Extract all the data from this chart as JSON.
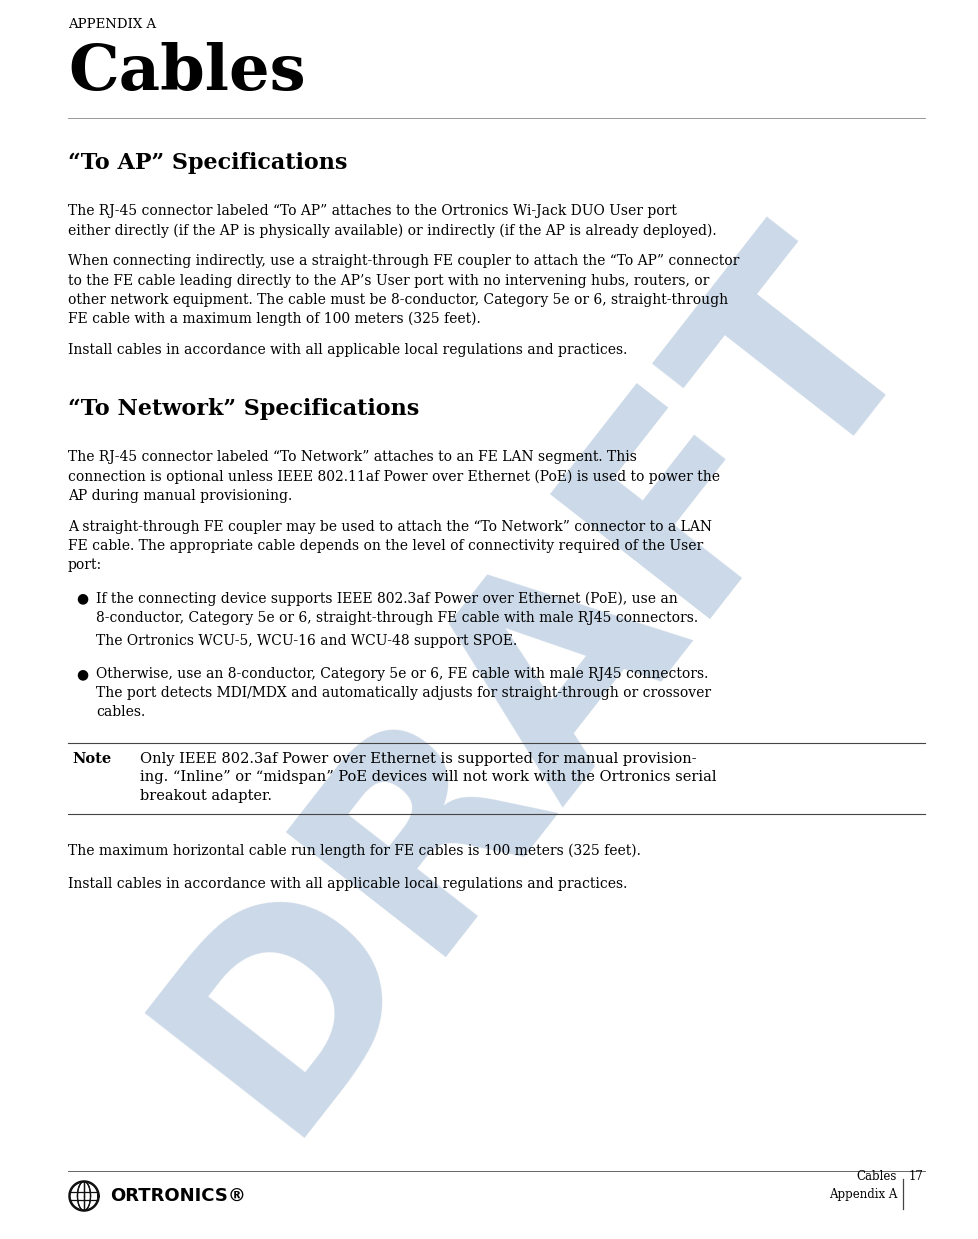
{
  "page_width": 9.79,
  "page_height": 12.39,
  "dpi": 100,
  "bg_color": "#ffffff",
  "text_color": "#000000",
  "lm": 0.68,
  "rm": 9.25,
  "watermark_color": "#ccd9e8",
  "draft_watermark": "DRAFT",
  "appendix_label": "APPENDIX A",
  "chapter_title": "Cables",
  "section1_title": "“To AP” Specifications",
  "section1_para1a": "The RJ-45 connector labeled “To AP” attaches to the Ortronics Wi-Jack DUO User port",
  "section1_para1b": "either directly (if the AP is physically available) or indirectly (if the AP is already deployed).",
  "section1_para2a": "When connecting indirectly, use a straight-through FE coupler to attach the “To AP” connector",
  "section1_para2b": "to the FE cable leading directly to the AP’s User port with no intervening hubs, routers, or",
  "section1_para2c": "other network equipment. The cable must be 8-conductor, Category 5e or 6, straight-through",
  "section1_para2d": "FE cable with a maximum length of 100 meters (325 feet).",
  "section1_para3": "Install cables in accordance with all applicable local regulations and practices.",
  "section2_title": "“To Network” Specifications",
  "section2_para1a": "The RJ-45 connector labeled “To Network” attaches to an FE LAN segment. This",
  "section2_para1b": "connection is optional unless IEEE 802.11af Power over Ethernet (PoE) is used to power the",
  "section2_para1c": "AP during manual provisioning.",
  "section2_para2a": "A straight-through FE coupler may be used to attach the “To Network” connector to a LAN",
  "section2_para2b": "FE cable. The appropriate cable depends on the level of connectivity required of the User",
  "section2_para2c": "port:",
  "bullet1_line1": "If the connecting device supports IEEE 802.3af Power over Ethernet (PoE), use an",
  "bullet1_line2": "8-conductor, Category 5e or 6, straight-through FE cable with male RJ45 connectors.",
  "bullet1_sub": "The Ortronics WCU-5, WCU-16 and WCU-48 support SPOE.",
  "bullet2_line1": "Otherwise, use an 8-conductor, Category 5e or 6, FE cable with male RJ45 connectors.",
  "bullet2_line2": "The port detects MDI/MDX and automatically adjusts for straight-through or crossover",
  "bullet2_line3": "cables.",
  "note_label": "Note",
  "note_line1": "Only IEEE 802.3af Power over Ethernet is supported for manual provision-",
  "note_line2": "ing. “Inline” or “midspan” PoE devices will not work with the Ortronics serial",
  "note_line3": "breakout adapter.",
  "footer_para1": "The maximum horizontal cable run length for FE cables is 100 meters (325 feet).",
  "footer_para2": "Install cables in accordance with all applicable local regulations and practices.",
  "footer_right1": "Cables",
  "footer_right2": "17",
  "footer_right3": "Appendix A",
  "ortronics_text": "ORTRONICS®"
}
